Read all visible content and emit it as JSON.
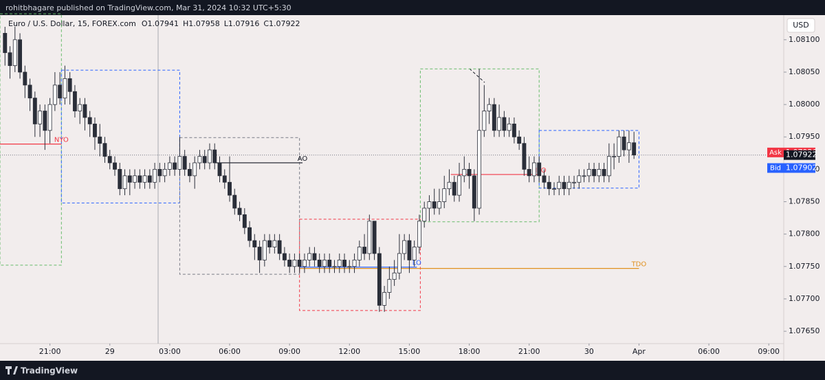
{
  "chart_data": {
    "type": "candlestick",
    "title": "rohitbhagare published on TradingView.com, Mar 31, 2024 10:32 UTC+5:30",
    "subtitle": "Euro / U.S. Dollar, 15, FOREX.com",
    "ohlc_labels": [
      "O1.07941",
      "H1.07958",
      "L1.07916",
      "C1.07922"
    ],
    "currency": "USD",
    "footer": "TradingView",
    "open": [
      1.0811,
      1.0808,
      1.0806,
      1.081,
      1.0805,
      1.0803,
      1.0801,
      1.0797,
      1.0799,
      1.0796,
      1.08,
      1.0803,
      1.0801,
      1.0804,
      1.0802,
      1.0799,
      1.08,
      1.0798,
      1.0797,
      1.0795,
      1.0794,
      1.0792,
      1.0791,
      1.079,
      1.0787,
      1.0789,
      1.0788,
      1.0789,
      1.0788,
      1.0789,
      1.0788,
      1.079,
      1.0789,
      1.079,
      1.0791,
      1.079,
      1.0792,
      1.079,
      1.0789,
      1.0791,
      1.0792,
      1.0791,
      1.0793,
      1.0791,
      1.0789,
      1.0788,
      1.0786,
      1.0784,
      1.0783,
      1.0781,
      1.0779,
      1.0778,
      1.0776,
      1.0779,
      1.0778,
      1.0779,
      1.0777,
      1.0776,
      1.0775,
      1.0776,
      1.0775,
      1.0776,
      1.0777,
      1.0776,
      1.0775,
      1.0776,
      1.0775,
      1.0775,
      1.0776,
      1.0775,
      1.0775,
      1.0776,
      1.0778,
      1.0777,
      1.0782,
      1.0777,
      1.0769,
      1.0771,
      1.0773,
      1.0774,
      1.0777,
      1.0779,
      1.0776,
      1.0778,
      1.0782,
      1.0784,
      1.0785,
      1.0784,
      1.0785,
      1.0787,
      1.0788,
      1.0786,
      1.0789,
      1.079,
      1.0789,
      1.0784,
      1.0796,
      1.0799,
      1.08,
      1.0796,
      1.0798,
      1.0796,
      1.0797,
      1.0795,
      1.0794,
      1.079,
      1.0789,
      1.0791,
      1.0789,
      1.0788,
      1.0787,
      1.0787,
      1.0788,
      1.0787,
      1.0788,
      1.0788,
      1.0789,
      1.0789,
      1.079,
      1.0789,
      1.079,
      1.0789,
      1.0792,
      1.0792,
      1.0795,
      1.0793,
      1.07941
    ],
    "high": [
      1.0812,
      1.0809,
      1.0812,
      1.0811,
      1.0806,
      1.0804,
      1.0802,
      1.08,
      1.08,
      1.0801,
      1.0805,
      1.0805,
      1.0806,
      1.0805,
      1.0803,
      1.0801,
      1.0801,
      1.0799,
      1.0798,
      1.0797,
      1.0795,
      1.0793,
      1.0792,
      1.0791,
      1.079,
      1.079,
      1.079,
      1.079,
      1.079,
      1.079,
      1.0791,
      1.0791,
      1.0791,
      1.0792,
      1.0792,
      1.0795,
      1.0793,
      1.0791,
      1.0792,
      1.0793,
      1.0793,
      1.0794,
      1.0794,
      1.0792,
      1.079,
      1.0792,
      1.0787,
      1.0785,
      1.0784,
      1.0782,
      1.078,
      1.0779,
      1.078,
      1.078,
      1.078,
      1.078,
      1.0778,
      1.0777,
      1.0777,
      1.0777,
      1.0777,
      1.0778,
      1.0778,
      1.0777,
      1.0777,
      1.0777,
      1.0776,
      1.0777,
      1.0777,
      1.0776,
      1.0777,
      1.0779,
      1.078,
      1.0783,
      1.0782,
      1.0778,
      1.0772,
      1.0775,
      1.0776,
      1.078,
      1.078,
      1.078,
      1.0779,
      1.0783,
      1.0785,
      1.0786,
      1.0787,
      1.0787,
      1.0789,
      1.079,
      1.0789,
      1.0791,
      1.0792,
      1.0791,
      1.079,
      1.08055,
      1.0803,
      1.0801,
      1.0801,
      1.08,
      1.0799,
      1.0798,
      1.0798,
      1.0796,
      1.0795,
      1.0792,
      1.0792,
      1.0792,
      1.079,
      1.0789,
      1.0788,
      1.0789,
      1.0789,
      1.0789,
      1.0789,
      1.079,
      1.079,
      1.0791,
      1.0791,
      1.0791,
      1.0791,
      1.0794,
      1.0794,
      1.0796,
      1.0796,
      1.0796,
      1.07958
    ],
    "low": [
      1.0806,
      1.0804,
      1.0805,
      1.0804,
      1.0801,
      1.0799,
      1.0795,
      1.0795,
      1.0793,
      1.0794,
      1.0799,
      1.08,
      1.08,
      1.08,
      1.0798,
      1.0797,
      1.0796,
      1.0795,
      1.0793,
      1.0792,
      1.0791,
      1.079,
      1.0789,
      1.0786,
      1.0786,
      1.0786,
      1.0787,
      1.0787,
      1.0787,
      1.0787,
      1.0787,
      1.0788,
      1.0788,
      1.0789,
      1.0789,
      1.0789,
      1.0789,
      1.0788,
      1.0787,
      1.079,
      1.079,
      1.079,
      1.079,
      1.0788,
      1.0787,
      1.0785,
      1.0783,
      1.0782,
      1.078,
      1.0778,
      1.0776,
      1.0774,
      1.0775,
      1.0777,
      1.0777,
      1.0776,
      1.0775,
      1.0774,
      1.0774,
      1.0774,
      1.0774,
      1.0775,
      1.0775,
      1.0774,
      1.0774,
      1.0774,
      1.0774,
      1.0774,
      1.0774,
      1.0774,
      1.0774,
      1.0775,
      1.0776,
      1.0776,
      1.0776,
      1.0768,
      1.0768,
      1.077,
      1.0772,
      1.0773,
      1.0776,
      1.0774,
      1.0775,
      1.0777,
      1.0781,
      1.0782,
      1.0783,
      1.0783,
      1.0784,
      1.0786,
      1.0785,
      1.0785,
      1.0788,
      1.0787,
      1.0782,
      1.0783,
      1.0795,
      1.0797,
      1.0795,
      1.0795,
      1.0795,
      1.0795,
      1.0794,
      1.0793,
      1.0789,
      1.0788,
      1.0788,
      1.0788,
      1.0787,
      1.0786,
      1.0786,
      1.0786,
      1.0786,
      1.0786,
      1.0787,
      1.0787,
      1.0788,
      1.0788,
      1.0788,
      1.0788,
      1.0788,
      1.0788,
      1.079,
      1.0791,
      1.0792,
      1.0791,
      1.07916
    ],
    "close": [
      1.0808,
      1.0806,
      1.081,
      1.0805,
      1.0803,
      1.0801,
      1.0797,
      1.0799,
      1.0796,
      1.08,
      1.0803,
      1.0801,
      1.0804,
      1.0802,
      1.0799,
      1.08,
      1.0798,
      1.0797,
      1.0795,
      1.0794,
      1.0792,
      1.0791,
      1.079,
      1.0787,
      1.0789,
      1.0788,
      1.0789,
      1.0788,
      1.0789,
      1.0788,
      1.079,
      1.0789,
      1.079,
      1.0791,
      1.079,
      1.0792,
      1.079,
      1.0789,
      1.0791,
      1.0792,
      1.0791,
      1.0793,
      1.0791,
      1.0789,
      1.0788,
      1.0786,
      1.0784,
      1.0783,
      1.0781,
      1.0779,
      1.0778,
      1.0776,
      1.0779,
      1.0778,
      1.0779,
      1.0777,
      1.0776,
      1.0775,
      1.0776,
      1.0775,
      1.0776,
      1.0777,
      1.0776,
      1.0775,
      1.0776,
      1.0775,
      1.0775,
      1.0776,
      1.0775,
      1.0775,
      1.0776,
      1.0778,
      1.0777,
      1.0782,
      1.0777,
      1.0769,
      1.0771,
      1.0773,
      1.0774,
      1.0777,
      1.0779,
      1.0776,
      1.0778,
      1.0782,
      1.0784,
      1.0785,
      1.0784,
      1.0785,
      1.0787,
      1.0788,
      1.0786,
      1.0789,
      1.079,
      1.0789,
      1.0784,
      1.0796,
      1.0799,
      1.08,
      1.0796,
      1.0798,
      1.0796,
      1.0797,
      1.0795,
      1.0794,
      1.079,
      1.0789,
      1.0791,
      1.0789,
      1.0788,
      1.0787,
      1.0787,
      1.0788,
      1.0787,
      1.0788,
      1.0788,
      1.0789,
      1.0789,
      1.079,
      1.0789,
      1.079,
      1.0789,
      1.0792,
      1.0792,
      1.0795,
      1.0793,
      1.07941,
      1.07922
    ],
    "colors": {
      "up": "#ffffff",
      "down": "#2a2e39",
      "outline": "#2a2e39"
    },
    "xlim": [
      -1,
      156
    ],
    "xticks": [
      {
        "value": 9,
        "label": "21:00"
      },
      {
        "value": 21,
        "label": "29"
      },
      {
        "value": 33,
        "label": "03:00"
      },
      {
        "value": 45,
        "label": "06:00"
      },
      {
        "value": 57,
        "label": "09:00"
      },
      {
        "value": 69,
        "label": "12:00"
      },
      {
        "value": 81,
        "label": "15:00"
      },
      {
        "value": 93,
        "label": "18:00"
      },
      {
        "value": 105,
        "label": "21:00"
      },
      {
        "value": 117,
        "label": "30"
      },
      {
        "value": 127,
        "label": "Apr"
      },
      {
        "value": 141,
        "label": "06:00"
      },
      {
        "value": 153,
        "label": "09:00"
      }
    ],
    "ylim": [
      1.07631,
      1.08138
    ],
    "yticks": [
      {
        "value": 1.081,
        "label": "1.08100"
      },
      {
        "value": 1.0805,
        "label": "1.08050"
      },
      {
        "value": 1.08,
        "label": "1.08000"
      },
      {
        "value": 1.0795,
        "label": "1.07950"
      },
      {
        "value": 1.079,
        "label": "1.07900"
      },
      {
        "value": 1.0785,
        "label": "1.07850"
      },
      {
        "value": 1.078,
        "label": "1.07800"
      },
      {
        "value": 1.0775,
        "label": "1.07750"
      },
      {
        "value": 1.077,
        "label": "1.07700"
      },
      {
        "value": 1.0765,
        "label": "1.07650"
      }
    ],
    "last_price": 1.07922,
    "ask": {
      "label": "Ask",
      "value": 1.07926,
      "color": "#f23645"
    },
    "bid": {
      "label": "Bid",
      "value": 1.07902,
      "color": "#2962ff"
    },
    "boxes": [
      {
        "x": [
          -1,
          11.3
        ],
        "y": [
          1.07752,
          1.0814
        ],
        "color": "#66bb6a"
      },
      {
        "x": [
          11.3,
          35
        ],
        "y": [
          1.07848,
          1.08053
        ],
        "color": "#2962ff"
      },
      {
        "x": [
          35,
          59
        ],
        "y": [
          1.07738,
          1.07949
        ],
        "color": "#787b86"
      },
      {
        "x": [
          59,
          83.2
        ],
        "y": [
          1.07682,
          1.07823
        ],
        "color": "#f23645"
      },
      {
        "x": [
          83.2,
          107
        ],
        "y": [
          1.07819,
          1.08055
        ],
        "color": "#66bb6a"
      },
      {
        "x": [
          107,
          127
        ],
        "y": [
          1.07871,
          1.0796
        ],
        "color": "#2962ff"
      }
    ],
    "levels": [
      {
        "label": "NYO",
        "value": 1.07939,
        "x": [
          -1,
          11.3
        ],
        "color": "#f23645"
      },
      {
        "label": "AO",
        "value": 1.0791,
        "x": [
          42,
          59.6
        ],
        "color": "#131722"
      },
      {
        "label": "NYO",
        "value": 1.07892,
        "x": [
          89.3,
          107
        ],
        "color": "#f23645"
      },
      {
        "label": "LO",
        "value": 1.07749,
        "x": [
          59,
          82.5
        ],
        "color": "#2962ff"
      },
      {
        "label": "TDO",
        "value": 1.07747,
        "x": [
          59,
          127
        ],
        "color": "#e0901e"
      }
    ]
  }
}
